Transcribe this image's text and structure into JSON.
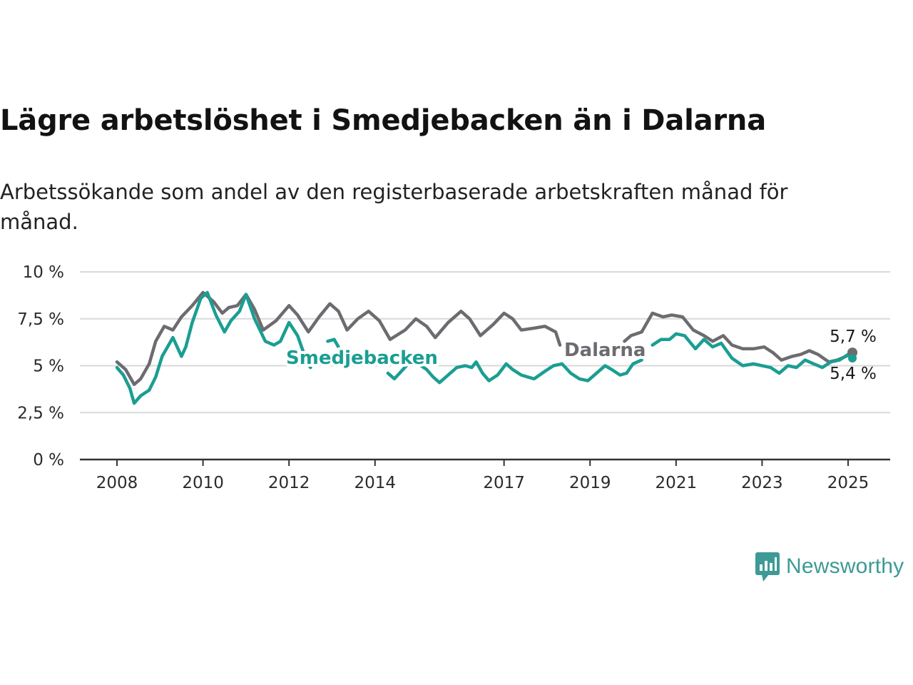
{
  "header": {
    "title": "Lägre arbetslöshet i Smedjebacken än i Dalarna",
    "subtitle": "Arbetssökande som andel av den registerbaserade arbetskraften månad för månad."
  },
  "brand": {
    "name": "Newsworthy",
    "icon": "newsworthy-logo-icon",
    "color": "#3d9a94"
  },
  "chart_data": {
    "type": "line",
    "title": "Lägre arbetslöshet i Smedjebacken än i Dalarna",
    "subtitle": "Arbetssökande som andel av den registerbaserade arbetskraften månad för månad.",
    "xlabel": "",
    "ylabel": "",
    "xlim": [
      2008,
      2025.2
    ],
    "ylim": [
      0,
      10
    ],
    "x_ticks": [
      2008,
      2010,
      2012,
      2014,
      2017,
      2019,
      2021,
      2023,
      2025
    ],
    "x_tick_labels": [
      "2008",
      "2010",
      "2012",
      "2014",
      "2017",
      "2019",
      "2021",
      "2023",
      "2025"
    ],
    "y_ticks": [
      0,
      2.5,
      5,
      7.5,
      10
    ],
    "y_tick_labels": [
      "0 %",
      "2,5 %",
      "5 %",
      "7,5 %",
      "10 %"
    ],
    "grid": "horizontal",
    "legend": "inline labels",
    "series": [
      {
        "name": "Dalarna",
        "color": "#6e6b70",
        "end_label": "5,7 %",
        "points": [
          [
            2008.0,
            5.2
          ],
          [
            2008.2,
            4.8
          ],
          [
            2008.4,
            4.0
          ],
          [
            2008.55,
            4.3
          ],
          [
            2008.75,
            5.1
          ],
          [
            2008.9,
            6.3
          ],
          [
            2009.1,
            7.1
          ],
          [
            2009.3,
            6.9
          ],
          [
            2009.5,
            7.6
          ],
          [
            2009.75,
            8.2
          ],
          [
            2010.0,
            8.9
          ],
          [
            2010.25,
            8.4
          ],
          [
            2010.45,
            7.8
          ],
          [
            2010.6,
            8.1
          ],
          [
            2010.8,
            8.2
          ],
          [
            2011.0,
            8.8
          ],
          [
            2011.2,
            8.0
          ],
          [
            2011.4,
            6.9
          ],
          [
            2011.7,
            7.4
          ],
          [
            2012.0,
            8.2
          ],
          [
            2012.2,
            7.7
          ],
          [
            2012.45,
            6.8
          ],
          [
            2012.7,
            7.6
          ],
          [
            2012.95,
            8.3
          ],
          [
            2013.15,
            7.9
          ],
          [
            2013.35,
            6.9
          ],
          [
            2013.6,
            7.5
          ],
          [
            2013.85,
            7.9
          ],
          [
            2014.1,
            7.4
          ],
          [
            2014.35,
            6.4
          ],
          [
            2014.7,
            6.9
          ],
          [
            2014.95,
            7.5
          ],
          [
            2015.2,
            7.1
          ],
          [
            2015.4,
            6.5
          ],
          [
            2015.7,
            7.3
          ],
          [
            2016.0,
            7.9
          ],
          [
            2016.2,
            7.5
          ],
          [
            2016.45,
            6.6
          ],
          [
            2016.75,
            7.2
          ],
          [
            2017.0,
            7.8
          ],
          [
            2017.2,
            7.5
          ],
          [
            2017.4,
            6.9
          ],
          [
            2017.7,
            7.0
          ],
          [
            2017.95,
            7.1
          ],
          [
            2018.2,
            6.8
          ],
          [
            2018.3,
            6.1
          ]
        ],
        "points_2": [
          [
            2019.8,
            6.3
          ],
          [
            2019.95,
            6.6
          ],
          [
            2020.2,
            6.8
          ],
          [
            2020.45,
            7.8
          ],
          [
            2020.7,
            7.6
          ],
          [
            2020.9,
            7.7
          ],
          [
            2021.15,
            7.6
          ],
          [
            2021.4,
            6.9
          ],
          [
            2021.65,
            6.6
          ],
          [
            2021.85,
            6.3
          ],
          [
            2022.1,
            6.6
          ],
          [
            2022.3,
            6.1
          ],
          [
            2022.55,
            5.9
          ],
          [
            2022.8,
            5.9
          ],
          [
            2023.05,
            6.0
          ],
          [
            2023.25,
            5.7
          ],
          [
            2023.45,
            5.3
          ],
          [
            2023.7,
            5.5
          ],
          [
            2023.9,
            5.6
          ],
          [
            2024.1,
            5.8
          ],
          [
            2024.3,
            5.6
          ],
          [
            2024.55,
            5.2
          ],
          [
            2024.75,
            5.3
          ],
          [
            2024.95,
            5.5
          ],
          [
            2025.1,
            5.7
          ]
        ]
      },
      {
        "name": "Smedjebacken",
        "color": "#1a9e92",
        "end_label": "5,4 %",
        "points": [
          [
            2008.0,
            4.9
          ],
          [
            2008.15,
            4.5
          ],
          [
            2008.3,
            3.8
          ],
          [
            2008.4,
            3.0
          ],
          [
            2008.55,
            3.4
          ],
          [
            2008.75,
            3.7
          ],
          [
            2008.9,
            4.4
          ],
          [
            2009.05,
            5.5
          ],
          [
            2009.3,
            6.5
          ],
          [
            2009.5,
            5.5
          ],
          [
            2009.6,
            6.0
          ],
          [
            2009.75,
            7.3
          ],
          [
            2009.95,
            8.6
          ],
          [
            2010.1,
            8.9
          ],
          [
            2010.3,
            7.7
          ],
          [
            2010.5,
            6.8
          ],
          [
            2010.65,
            7.4
          ],
          [
            2010.85,
            7.9
          ],
          [
            2011.0,
            8.8
          ],
          [
            2011.2,
            7.5
          ],
          [
            2011.45,
            6.3
          ],
          [
            2011.65,
            6.1
          ],
          [
            2011.8,
            6.3
          ],
          [
            2012.0,
            7.3
          ],
          [
            2012.2,
            6.6
          ],
          [
            2012.4,
            5.3
          ],
          [
            2012.5,
            4.9
          ]
        ],
        "points_2": [
          [
            2012.9,
            6.3
          ],
          [
            2013.05,
            6.4
          ],
          [
            2013.2,
            5.8
          ],
          [
            2013.35,
            4.9
          ]
        ],
        "points_3": [
          [
            2014.3,
            4.6
          ],
          [
            2014.45,
            4.3
          ],
          [
            2014.65,
            4.8
          ],
          [
            2014.85,
            5.3
          ],
          [
            2015.0,
            5.1
          ],
          [
            2015.2,
            4.8
          ],
          [
            2015.35,
            4.4
          ],
          [
            2015.5,
            4.1
          ],
          [
            2015.7,
            4.5
          ],
          [
            2015.9,
            4.9
          ],
          [
            2016.1,
            5.0
          ],
          [
            2016.25,
            4.9
          ],
          [
            2016.35,
            5.2
          ],
          [
            2016.5,
            4.6
          ],
          [
            2016.65,
            4.2
          ],
          [
            2016.85,
            4.5
          ],
          [
            2017.05,
            5.1
          ],
          [
            2017.2,
            4.8
          ],
          [
            2017.4,
            4.5
          ],
          [
            2017.55,
            4.4
          ],
          [
            2017.7,
            4.3
          ],
          [
            2017.95,
            4.7
          ],
          [
            2018.15,
            5.0
          ],
          [
            2018.35,
            5.1
          ],
          [
            2018.55,
            4.6
          ],
          [
            2018.75,
            4.3
          ],
          [
            2018.95,
            4.2
          ],
          [
            2019.15,
            4.6
          ],
          [
            2019.35,
            5.0
          ],
          [
            2019.5,
            4.8
          ],
          [
            2019.7,
            4.5
          ],
          [
            2019.85,
            4.6
          ],
          [
            2020.0,
            5.1
          ],
          [
            2020.2,
            5.3
          ]
        ],
        "points_4": [
          [
            2020.45,
            6.1
          ],
          [
            2020.65,
            6.4
          ],
          [
            2020.85,
            6.4
          ],
          [
            2021.0,
            6.7
          ],
          [
            2021.2,
            6.6
          ],
          [
            2021.45,
            5.9
          ],
          [
            2021.65,
            6.4
          ],
          [
            2021.85,
            6.0
          ],
          [
            2022.05,
            6.2
          ],
          [
            2022.3,
            5.4
          ],
          [
            2022.55,
            5.0
          ],
          [
            2022.8,
            5.1
          ],
          [
            2023.0,
            5.0
          ],
          [
            2023.2,
            4.9
          ],
          [
            2023.4,
            4.6
          ],
          [
            2023.6,
            5.0
          ],
          [
            2023.8,
            4.9
          ],
          [
            2024.0,
            5.3
          ],
          [
            2024.2,
            5.1
          ],
          [
            2024.4,
            4.9
          ],
          [
            2024.6,
            5.2
          ],
          [
            2024.8,
            5.3
          ],
          [
            2025.0,
            5.6
          ],
          [
            2025.1,
            5.4
          ]
        ]
      }
    ]
  }
}
